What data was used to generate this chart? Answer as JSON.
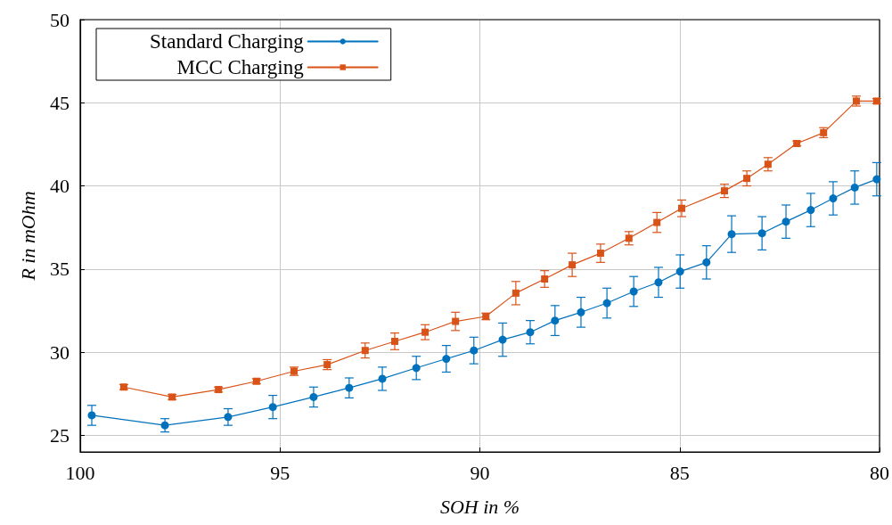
{
  "chart_data": {
    "type": "line",
    "xlabel": "SOH in %",
    "ylabel": "R in mOhm",
    "xlim": [
      100,
      80
    ],
    "xticks": [
      100,
      95,
      90,
      85,
      80
    ],
    "ylim": [
      24,
      50
    ],
    "yticks": [
      25,
      30,
      35,
      40,
      45,
      50
    ],
    "grid": true,
    "legend": "top left",
    "line_style": "solid",
    "series": [
      {
        "name": "Standard Charging",
        "color": "#0072bd",
        "marker": "circle",
        "x": [
          99.71,
          97.88,
          96.3,
          95.18,
          94.16,
          93.27,
          92.44,
          91.59,
          90.84,
          90.15,
          89.43,
          88.74,
          88.12,
          87.47,
          86.82,
          86.15,
          85.53,
          84.99,
          84.33,
          83.7,
          82.94,
          82.34,
          81.72,
          81.16,
          80.62,
          80.07
        ],
        "values": [
          26.2,
          25.6,
          26.1,
          26.7,
          27.3,
          27.85,
          28.4,
          29.05,
          29.6,
          30.1,
          30.75,
          31.2,
          31.9,
          32.4,
          32.95,
          33.65,
          34.2,
          34.85,
          35.4,
          37.1,
          37.15,
          37.85,
          38.55,
          39.25,
          39.9,
          40.4
        ],
        "errors": [
          0.6,
          0.4,
          0.5,
          0.7,
          0.6,
          0.6,
          0.7,
          0.7,
          0.8,
          0.8,
          1.0,
          0.7,
          0.9,
          0.9,
          0.9,
          0.9,
          0.9,
          1.0,
          1.0,
          1.1,
          1.0,
          1.0,
          1.0,
          1.0,
          1.0,
          1.0
        ]
      },
      {
        "name": "MCC Charging",
        "color": "#d95319",
        "marker": "square",
        "x": [
          98.91,
          97.7,
          96.54,
          95.59,
          94.65,
          93.82,
          92.87,
          92.13,
          91.37,
          90.61,
          89.85,
          89.1,
          88.38,
          87.69,
          86.98,
          86.27,
          85.57,
          84.95,
          83.88,
          83.32,
          82.79,
          82.07,
          81.4,
          80.58,
          80.07
        ],
        "values": [
          27.9,
          27.3,
          27.75,
          28.25,
          28.85,
          29.25,
          30.1,
          30.65,
          31.2,
          31.85,
          32.15,
          33.55,
          34.4,
          35.25,
          35.95,
          36.85,
          37.8,
          38.65,
          39.7,
          40.45,
          41.3,
          42.55,
          43.2,
          45.1,
          45.1
        ],
        "errors": [
          0.15,
          0.15,
          0.15,
          0.15,
          0.25,
          0.3,
          0.45,
          0.5,
          0.45,
          0.55,
          0.2,
          0.7,
          0.5,
          0.7,
          0.55,
          0.4,
          0.6,
          0.5,
          0.4,
          0.45,
          0.4,
          0.15,
          0.3,
          0.3,
          0.15
        ]
      }
    ]
  }
}
